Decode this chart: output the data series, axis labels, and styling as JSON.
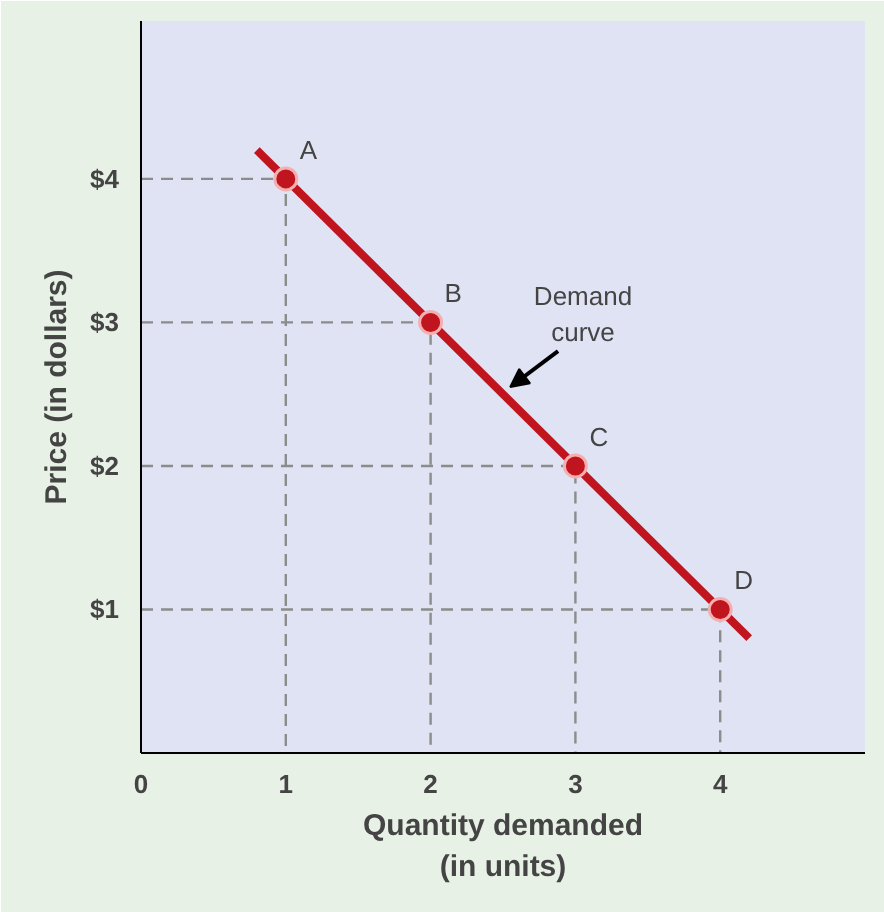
{
  "chart_data": {
    "type": "line",
    "xlabel": "Quantity demanded\n(in units)",
    "ylabel": "Price (in dollars)",
    "xlim": [
      0,
      5
    ],
    "ylim": [
      0,
      5.1
    ],
    "xticks": [
      0,
      1,
      2,
      3,
      4
    ],
    "yticks": [
      {
        "value": 0,
        "label": null
      },
      {
        "value": 1,
        "label": "$1"
      },
      {
        "value": 2,
        "label": "$2"
      },
      {
        "value": 3,
        "label": "$3"
      },
      {
        "value": 4,
        "label": "$4"
      }
    ],
    "grid": false,
    "series": [
      {
        "color": "#8c8c8c",
        "line_style": "dashed",
        "x": [
          0,
          1,
          1
        ],
        "values": [
          4,
          4,
          0
        ]
      },
      {
        "color": "#8c8c8c",
        "line_style": "dashed",
        "x": [
          0,
          2,
          2
        ],
        "values": [
          3,
          3,
          0
        ]
      },
      {
        "color": "#8c8c8c",
        "line_style": "dashed",
        "x": [
          0,
          3,
          3
        ],
        "values": [
          2,
          2,
          0
        ]
      },
      {
        "color": "#8c8c8c",
        "line_style": "dashed",
        "x": [
          0,
          4,
          4
        ],
        "values": [
          1,
          1,
          0
        ]
      },
      {
        "color": "#c0141e",
        "line_style": "solid",
        "x": [
          0.8,
          4.2
        ],
        "values": [
          4.2,
          0.8
        ]
      },
      {
        "type": "scatter",
        "color": "#c0141e",
        "marker": "circle",
        "x": [
          1,
          2,
          3,
          4
        ],
        "values": [
          4,
          3,
          2,
          1
        ]
      }
    ],
    "annotations": [
      {
        "text": "A",
        "x": 1,
        "y": 4
      },
      {
        "text": "B",
        "x": 2,
        "y": 3
      },
      {
        "text": "C",
        "x": 3,
        "y": 2
      },
      {
        "text": "D",
        "x": 4,
        "y": 1
      },
      {
        "text": "Demand\ncurve",
        "x": 2.5,
        "y": 2.5
      }
    ]
  }
}
